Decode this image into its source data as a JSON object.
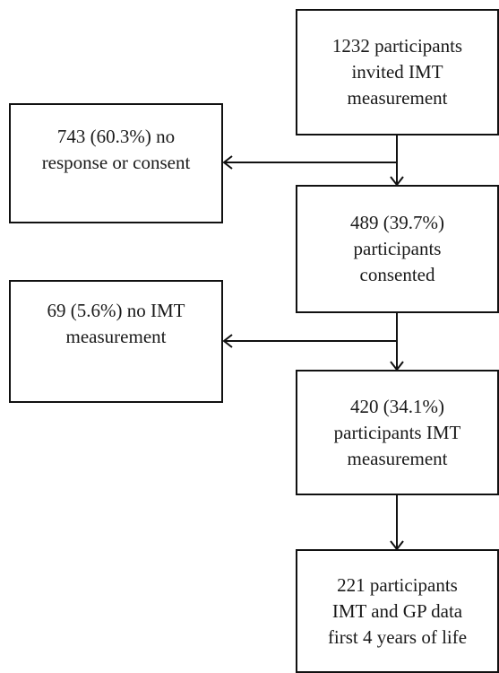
{
  "flowchart": {
    "box_invited": {
      "lines": [
        "1232 participants",
        "invited IMT",
        "measurement"
      ]
    },
    "box_no_response": {
      "lines": [
        "743 (60.3%) no",
        "response or consent"
      ]
    },
    "box_consented": {
      "lines": [
        "489 (39.7%)",
        "participants",
        "consented"
      ]
    },
    "box_no_imt": {
      "lines": [
        "69 (5.6%) no IMT",
        "measurement"
      ]
    },
    "box_imt": {
      "lines": [
        "420 (34.1%)",
        "participants IMT",
        "measurement"
      ]
    },
    "box_final": {
      "lines": [
        "221 participants",
        "IMT and GP data",
        "first 4 years of life"
      ]
    }
  },
  "colors": {
    "stroke": "#111111",
    "background": "#ffffff",
    "text": "#1a1a1a"
  }
}
